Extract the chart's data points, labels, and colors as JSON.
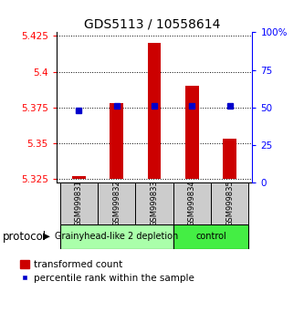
{
  "title": "GDS5113 / 10558614",
  "samples": [
    "GSM999831",
    "GSM999832",
    "GSM999833",
    "GSM999834",
    "GSM999835"
  ],
  "red_values": [
    5.327,
    5.378,
    5.42,
    5.39,
    5.353
  ],
  "blue_values": [
    5.373,
    5.376,
    5.376,
    5.376,
    5.376
  ],
  "baseline": 5.325,
  "ylim_left": [
    5.3225,
    5.4275
  ],
  "ylim_right": [
    0,
    100
  ],
  "yticks_left": [
    5.325,
    5.35,
    5.375,
    5.4,
    5.425
  ],
  "yticks_right": [
    0,
    25,
    50,
    75,
    100
  ],
  "ytick_labels_left": [
    "5.325",
    "5.35",
    "5.375",
    "5.4",
    "5.425"
  ],
  "ytick_labels_right": [
    "0",
    "25",
    "50",
    "75",
    "100%"
  ],
  "groups": [
    {
      "label": "Grainyhead-like 2 depletion",
      "start": 0,
      "end": 3,
      "color": "#aaffaa"
    },
    {
      "label": "control",
      "start": 3,
      "end": 5,
      "color": "#44ee44"
    }
  ],
  "red_color": "#cc0000",
  "blue_color": "#0000cc",
  "bar_width": 0.35,
  "bg_color": "#ffffff",
  "label_red": "transformed count",
  "label_blue": "percentile rank within the sample",
  "protocol_label": "protocol",
  "sample_bg": "#cccccc",
  "title_fontsize": 10,
  "tick_fontsize": 7.5,
  "sample_fontsize": 6,
  "group_fontsize": 7,
  "legend_fontsize": 7.5
}
